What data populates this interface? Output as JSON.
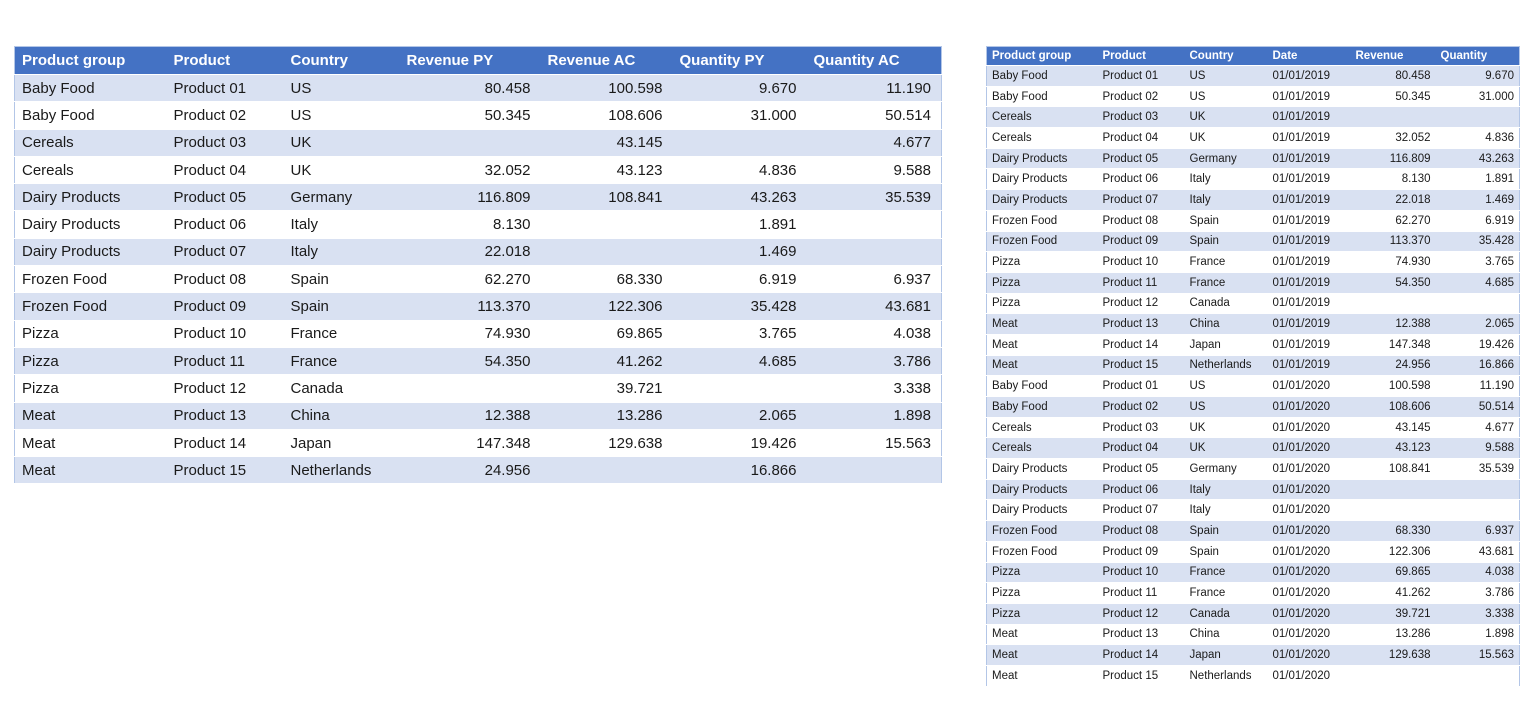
{
  "left_table": {
    "name": "pivoted-products-table",
    "columns": [
      "Product group",
      "Product",
      "Country",
      "Revenue PY",
      "Revenue AC",
      "Quantity PY",
      "Quantity AC"
    ],
    "rows": [
      [
        "Baby Food",
        "Product 01",
        "US",
        "80.458",
        "100.598",
        "9.670",
        "11.190"
      ],
      [
        "Baby Food",
        "Product 02",
        "US",
        "50.345",
        "108.606",
        "31.000",
        "50.514"
      ],
      [
        "Cereals",
        "Product 03",
        "UK",
        "",
        "43.145",
        "",
        "4.677"
      ],
      [
        "Cereals",
        "Product 04",
        "UK",
        "32.052",
        "43.123",
        "4.836",
        "9.588"
      ],
      [
        "Dairy Products",
        "Product 05",
        "Germany",
        "116.809",
        "108.841",
        "43.263",
        "35.539"
      ],
      [
        "Dairy Products",
        "Product 06",
        "Italy",
        "8.130",
        "",
        "1.891",
        ""
      ],
      [
        "Dairy Products",
        "Product 07",
        "Italy",
        "22.018",
        "",
        "1.469",
        ""
      ],
      [
        "Frozen Food",
        "Product 08",
        "Spain",
        "62.270",
        "68.330",
        "6.919",
        "6.937"
      ],
      [
        "Frozen Food",
        "Product 09",
        "Spain",
        "113.370",
        "122.306",
        "35.428",
        "43.681"
      ],
      [
        "Pizza",
        "Product 10",
        "France",
        "74.930",
        "69.865",
        "3.765",
        "4.038"
      ],
      [
        "Pizza",
        "Product 11",
        "France",
        "54.350",
        "41.262",
        "4.685",
        "3.786"
      ],
      [
        "Pizza",
        "Product 12",
        "Canada",
        "",
        "39.721",
        "",
        "3.338"
      ],
      [
        "Meat",
        "Product 13",
        "China",
        "12.388",
        "13.286",
        "2.065",
        "1.898"
      ],
      [
        "Meat",
        "Product 14",
        "Japan",
        "147.348",
        "129.638",
        "19.426",
        "15.563"
      ],
      [
        "Meat",
        "Product 15",
        "Netherlands",
        "24.956",
        "",
        "16.866",
        ""
      ]
    ]
  },
  "right_table": {
    "name": "flat-products-by-date-table",
    "columns": [
      "Product group",
      "Product",
      "Country",
      "Date",
      "Revenue",
      "Quantity"
    ],
    "rows": [
      [
        "Baby Food",
        "Product 01",
        "US",
        "01/01/2019",
        "80.458",
        "9.670"
      ],
      [
        "Baby Food",
        "Product 02",
        "US",
        "01/01/2019",
        "50.345",
        "31.000"
      ],
      [
        "Cereals",
        "Product 03",
        "UK",
        "01/01/2019",
        "",
        ""
      ],
      [
        "Cereals",
        "Product 04",
        "UK",
        "01/01/2019",
        "32.052",
        "4.836"
      ],
      [
        "Dairy Products",
        "Product 05",
        "Germany",
        "01/01/2019",
        "116.809",
        "43.263"
      ],
      [
        "Dairy Products",
        "Product 06",
        "Italy",
        "01/01/2019",
        "8.130",
        "1.891"
      ],
      [
        "Dairy Products",
        "Product 07",
        "Italy",
        "01/01/2019",
        "22.018",
        "1.469"
      ],
      [
        "Frozen Food",
        "Product 08",
        "Spain",
        "01/01/2019",
        "62.270",
        "6.919"
      ],
      [
        "Frozen Food",
        "Product 09",
        "Spain",
        "01/01/2019",
        "113.370",
        "35.428"
      ],
      [
        "Pizza",
        "Product 10",
        "France",
        "01/01/2019",
        "74.930",
        "3.765"
      ],
      [
        "Pizza",
        "Product 11",
        "France",
        "01/01/2019",
        "54.350",
        "4.685"
      ],
      [
        "Pizza",
        "Product 12",
        "Canada",
        "01/01/2019",
        "",
        ""
      ],
      [
        "Meat",
        "Product 13",
        "China",
        "01/01/2019",
        "12.388",
        "2.065"
      ],
      [
        "Meat",
        "Product 14",
        "Japan",
        "01/01/2019",
        "147.348",
        "19.426"
      ],
      [
        "Meat",
        "Product 15",
        "Netherlands",
        "01/01/2019",
        "24.956",
        "16.866"
      ],
      [
        "Baby Food",
        "Product 01",
        "US",
        "01/01/2020",
        "100.598",
        "11.190"
      ],
      [
        "Baby Food",
        "Product 02",
        "US",
        "01/01/2020",
        "108.606",
        "50.514"
      ],
      [
        "Cereals",
        "Product 03",
        "UK",
        "01/01/2020",
        "43.145",
        "4.677"
      ],
      [
        "Cereals",
        "Product 04",
        "UK",
        "01/01/2020",
        "43.123",
        "9.588"
      ],
      [
        "Dairy Products",
        "Product 05",
        "Germany",
        "01/01/2020",
        "108.841",
        "35.539"
      ],
      [
        "Dairy Products",
        "Product 06",
        "Italy",
        "01/01/2020",
        "",
        ""
      ],
      [
        "Dairy Products",
        "Product 07",
        "Italy",
        "01/01/2020",
        "",
        ""
      ],
      [
        "Frozen Food",
        "Product 08",
        "Spain",
        "01/01/2020",
        "68.330",
        "6.937"
      ],
      [
        "Frozen Food",
        "Product 09",
        "Spain",
        "01/01/2020",
        "122.306",
        "43.681"
      ],
      [
        "Pizza",
        "Product 10",
        "France",
        "01/01/2020",
        "69.865",
        "4.038"
      ],
      [
        "Pizza",
        "Product 11",
        "France",
        "01/01/2020",
        "41.262",
        "3.786"
      ],
      [
        "Pizza",
        "Product 12",
        "Canada",
        "01/01/2020",
        "39.721",
        "3.338"
      ],
      [
        "Meat",
        "Product 13",
        "China",
        "01/01/2020",
        "13.286",
        "1.898"
      ],
      [
        "Meat",
        "Product 14",
        "Japan",
        "01/01/2020",
        "129.638",
        "15.563"
      ],
      [
        "Meat",
        "Product 15",
        "Netherlands",
        "01/01/2020",
        "",
        ""
      ]
    ]
  },
  "colors": {
    "header_bg": "#4472C4",
    "header_text": "#FFFFFF",
    "band_row": "#D9E1F2",
    "plain_row": "#FFFFFF",
    "border": "#B3C6E7"
  }
}
